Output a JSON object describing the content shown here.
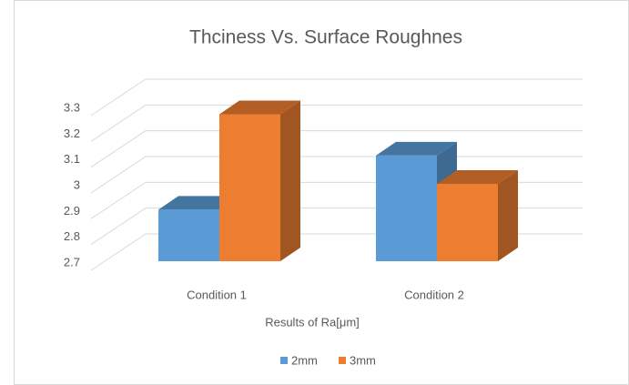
{
  "chart_data": {
    "type": "bar3d",
    "title": "Thciness Vs. Surface Roughnes",
    "categories": [
      "Condition 1",
      "Condition 2"
    ],
    "x_label": "Results of Ra[μm]",
    "series": [
      {
        "name": "2mm",
        "color": "#5b9bd5",
        "values": [
          2.9,
          3.11
        ]
      },
      {
        "name": "3mm",
        "color": "#ed7d31",
        "values": [
          3.27,
          3.0
        ]
      }
    ],
    "ylim": [
      2.7,
      3.3
    ],
    "yticks": [
      2.7,
      2.8,
      2.9,
      3,
      3.1,
      3.2,
      3.3
    ],
    "grid": true,
    "legend": "bottom"
  }
}
